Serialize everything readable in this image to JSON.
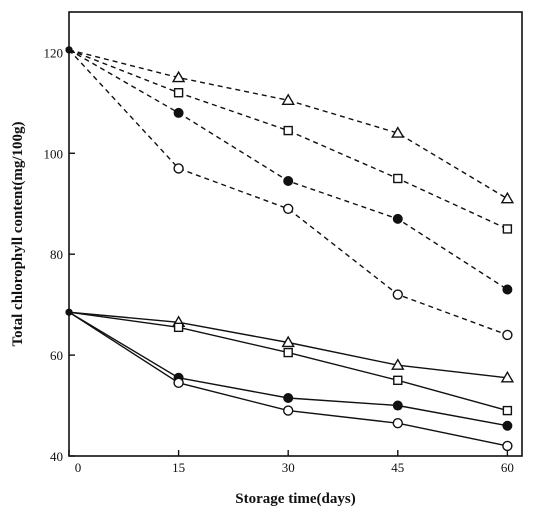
{
  "chart_data": {
    "type": "line",
    "title": "",
    "xlabel": "Storage time(days)",
    "ylabel": "Total chlorophyll content(mg/100g)",
    "xlim": [
      0,
      62
    ],
    "ylim": [
      40,
      128
    ],
    "x_ticks": [
      0,
      15,
      30,
      45,
      60
    ],
    "y_ticks": [
      40,
      60,
      80,
      100,
      120
    ],
    "grid": false,
    "legend": "none",
    "series": [
      {
        "line_style": "dashed",
        "marker": "triangle-open",
        "x": [
          0,
          15,
          30,
          45,
          60
        ],
        "y": [
          120.5,
          115,
          110.5,
          104,
          91
        ]
      },
      {
        "line_style": "dashed",
        "marker": "square-open",
        "x": [
          0,
          15,
          30,
          45,
          60
        ],
        "y": [
          120.5,
          112,
          104.5,
          95,
          85
        ]
      },
      {
        "line_style": "dashed",
        "marker": "circle-filled",
        "x": [
          0,
          15,
          30,
          45,
          60
        ],
        "y": [
          120.5,
          108,
          94.5,
          87,
          73
        ]
      },
      {
        "line_style": "dashed",
        "marker": "circle-open",
        "x": [
          0,
          15,
          30,
          45,
          60
        ],
        "y": [
          120.5,
          97,
          89,
          72,
          64
        ]
      },
      {
        "line_style": "solid",
        "marker": "triangle-open",
        "x": [
          0,
          15,
          30,
          45,
          60
        ],
        "y": [
          68.5,
          66.5,
          62.5,
          58,
          55.5
        ]
      },
      {
        "line_style": "solid",
        "marker": "square-open",
        "x": [
          0,
          15,
          30,
          45,
          60
        ],
        "y": [
          68.5,
          65.5,
          60.5,
          55,
          49
        ]
      },
      {
        "line_style": "solid",
        "marker": "circle-filled",
        "x": [
          0,
          15,
          30,
          45,
          60
        ],
        "y": [
          68.5,
          55.5,
          51.5,
          50,
          46
        ]
      },
      {
        "line_style": "solid",
        "marker": "circle-open",
        "x": [
          0,
          15,
          30,
          45,
          60
        ],
        "y": [
          68.5,
          54.5,
          49,
          46.5,
          42
        ]
      }
    ]
  }
}
